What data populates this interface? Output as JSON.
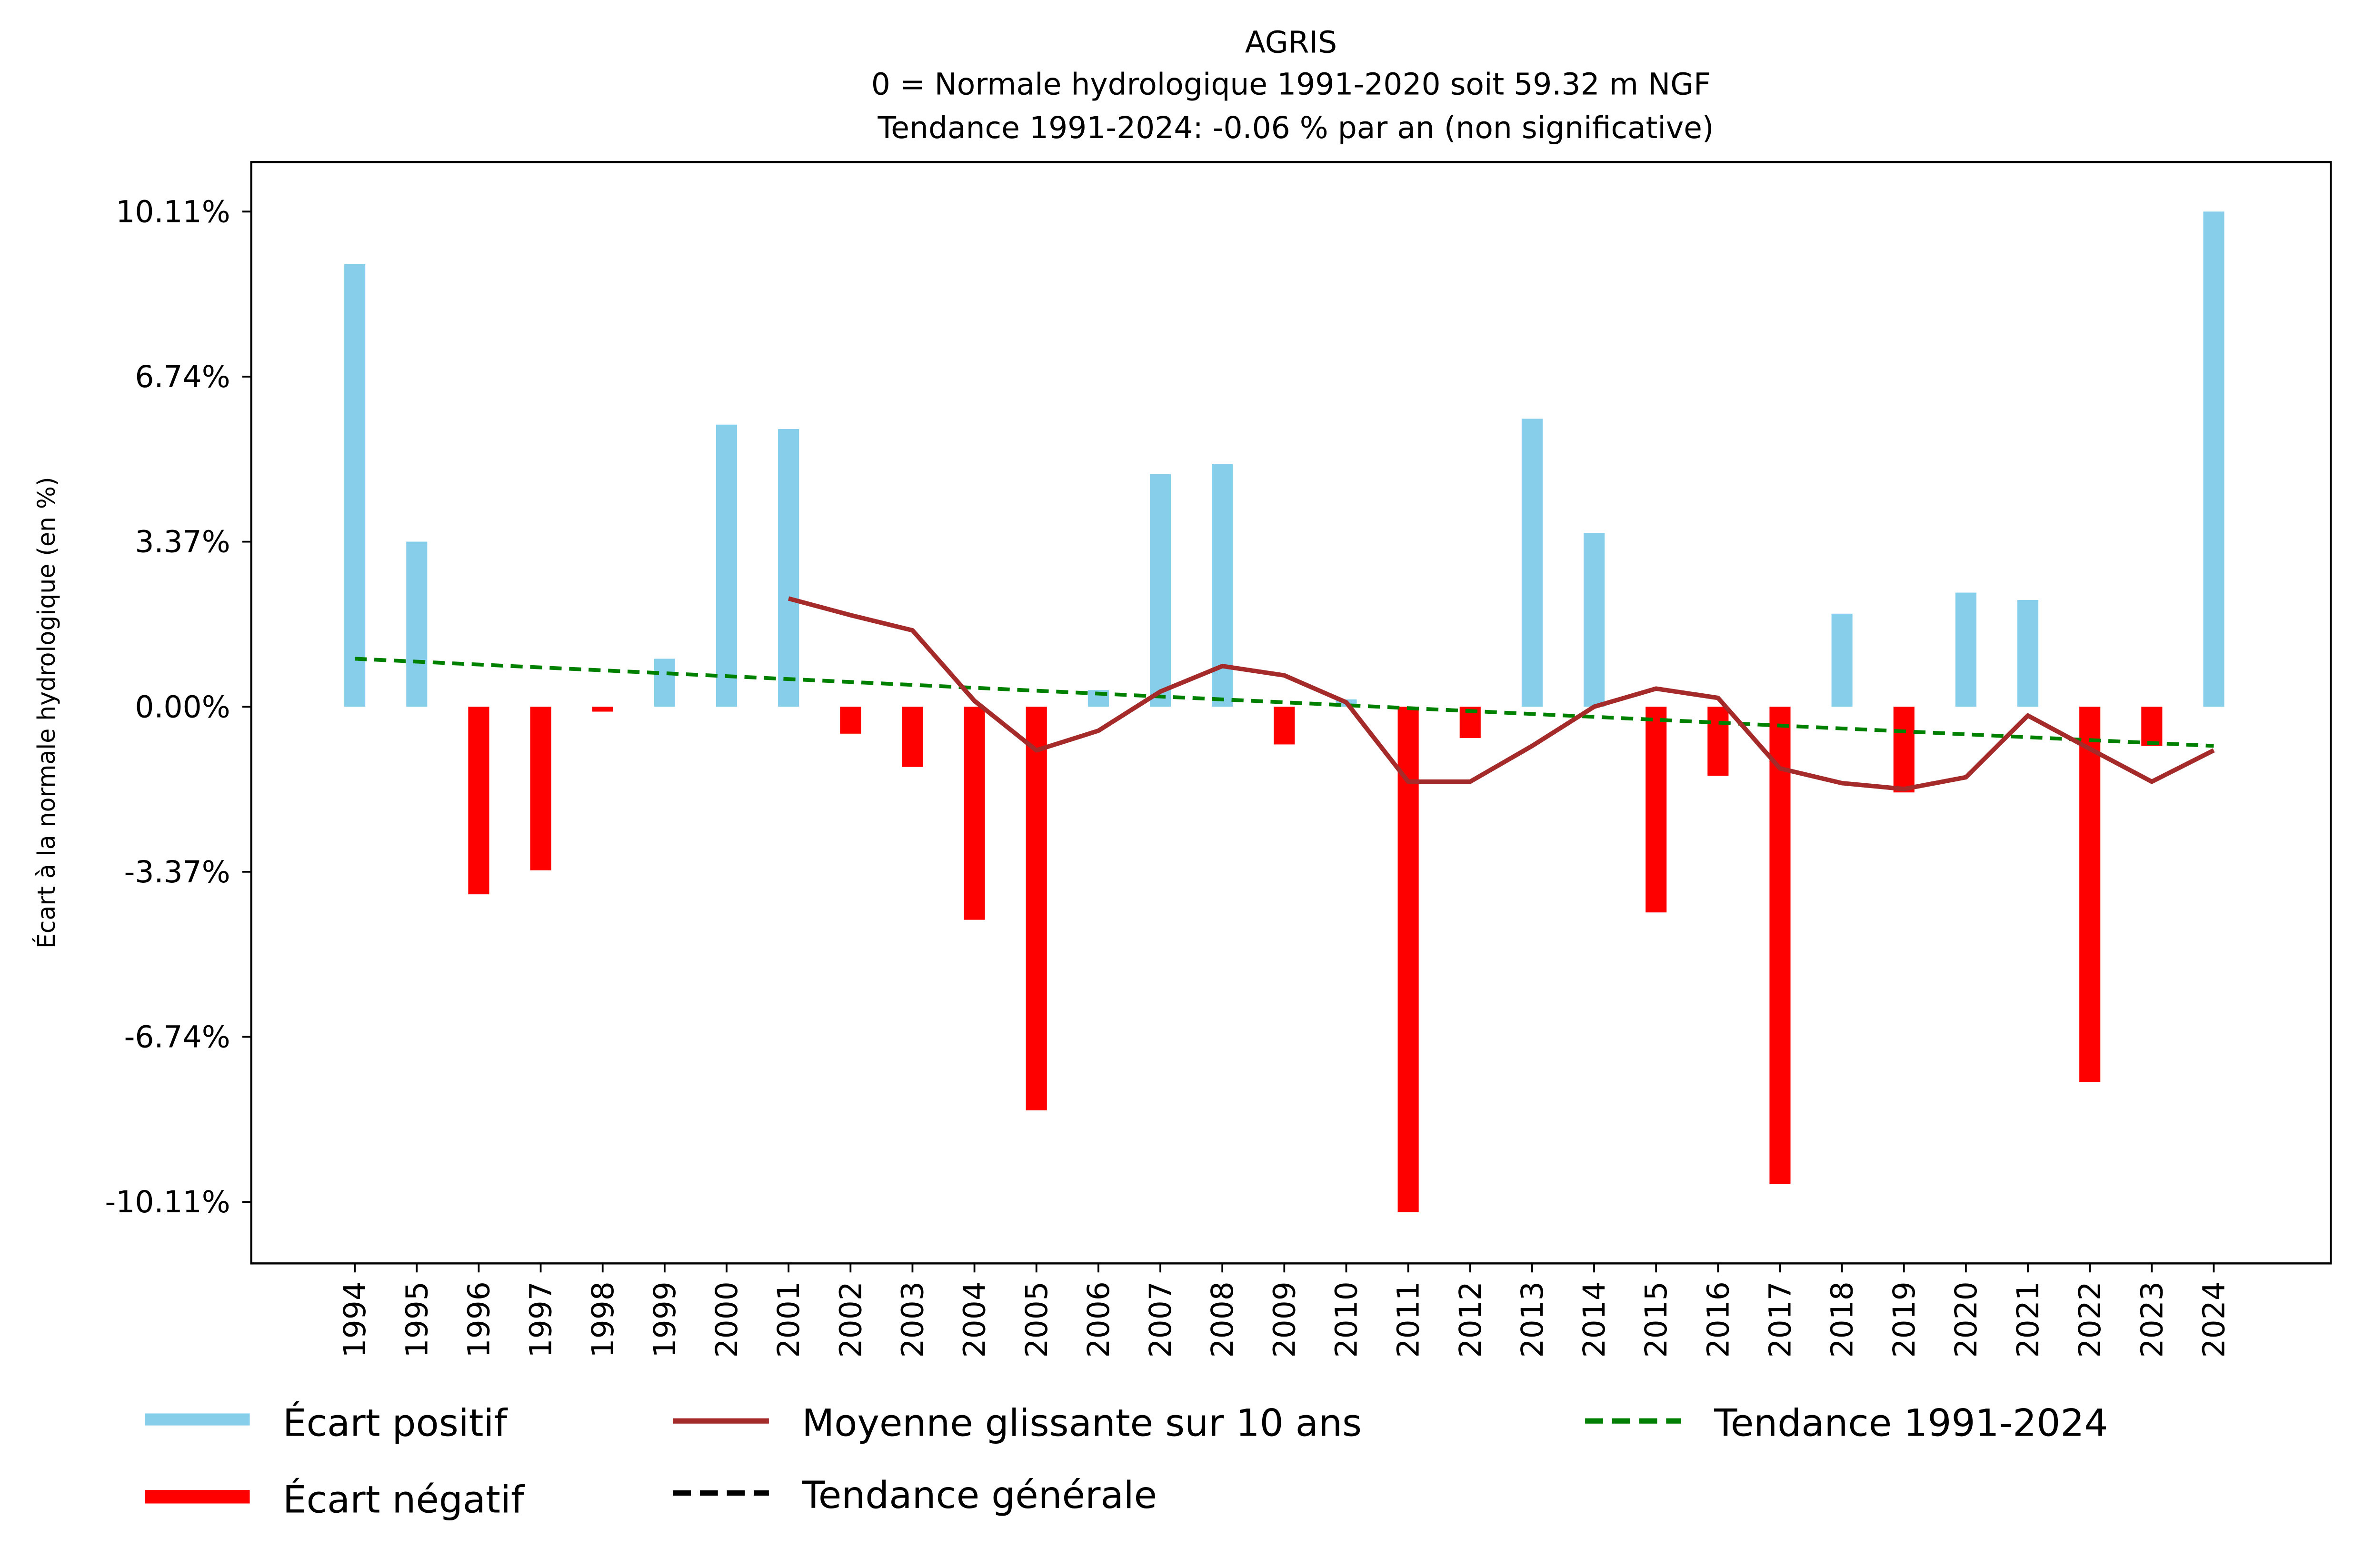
{
  "chart_data": {
    "type": "bar",
    "title": "AGRIS",
    "subtitle_1": "0 = Normale hydrologique 1991-2020 soit 59.32 m NGF",
    "subtitle_2": " Tendance 1991-2024: -0.06 % par an (non significative)",
    "xlabel": "",
    "ylabel": "Écart à la normale hydrologique (en %)",
    "ylim": [
      -11.1,
      11.1
    ],
    "yticks": [
      10.11,
      6.74,
      3.37,
      0.0,
      -3.37,
      -6.74,
      -10.11
    ],
    "ytick_labels": [
      "10.11%",
      "6.74%",
      "3.37%",
      "0.00%",
      "-3.37%",
      "-6.74%",
      "-10.11%"
    ],
    "categories": [
      "1994",
      "1995",
      "1996",
      "1997",
      "1998",
      "1999",
      "2000",
      "2001",
      "2002",
      "2003",
      "2004",
      "2005",
      "2006",
      "2007",
      "2008",
      "2009",
      "2010",
      "2011",
      "2012",
      "2013",
      "2014",
      "2015",
      "2016",
      "2017",
      "2018",
      "2019",
      "2020",
      "2021",
      "2022",
      "2023",
      "2024"
    ],
    "values": [
      9.04,
      3.37,
      -3.83,
      -3.34,
      -0.1,
      0.98,
      5.76,
      5.67,
      -0.55,
      -1.23,
      -4.35,
      -8.24,
      0.34,
      4.75,
      4.96,
      -0.77,
      0.15,
      -10.32,
      -0.64,
      5.88,
      3.55,
      -4.2,
      -1.41,
      -9.74,
      1.9,
      -1.75,
      2.33,
      2.18,
      -7.66,
      -0.8,
      10.11
    ],
    "moving_average": {
      "name": "Moyenne glissante sur 10 ans",
      "x": [
        "2001",
        "2002",
        "2003",
        "2004",
        "2005",
        "2006",
        "2007",
        "2008",
        "2009",
        "2010",
        "2011",
        "2012",
        "2013",
        "2014",
        "2015",
        "2016",
        "2017",
        "2018",
        "2019",
        "2020",
        "2021",
        "2022",
        "2023",
        "2024"
      ],
      "values": [
        2.21,
        1.87,
        1.56,
        0.12,
        -0.89,
        -0.49,
        0.31,
        0.83,
        0.64,
        0.09,
        -1.53,
        -1.53,
        -0.8,
        0.0,
        0.37,
        0.18,
        -1.26,
        -1.56,
        -1.68,
        -1.44,
        -0.18,
        -0.86,
        -1.53,
        -0.89
      ]
    },
    "trend": {
      "name": "Tendance 1991-2024",
      "start": {
        "x": "1994",
        "y": 0.98
      },
      "end": {
        "x": "2024",
        "y": -0.8
      }
    },
    "legend": {
      "placement": "bottom",
      "entries": [
        "Écart positif",
        "Écart négatif",
        "Moyenne glissante sur 10 ans",
        "Tendance générale",
        "Tendance 1991-2024"
      ]
    },
    "colors": {
      "positive": "#87ceeb",
      "negative": "#ff0000",
      "moving_average": "#a52a2a",
      "trend": "#008000",
      "general_trend": "#000000"
    },
    "grid": false
  }
}
